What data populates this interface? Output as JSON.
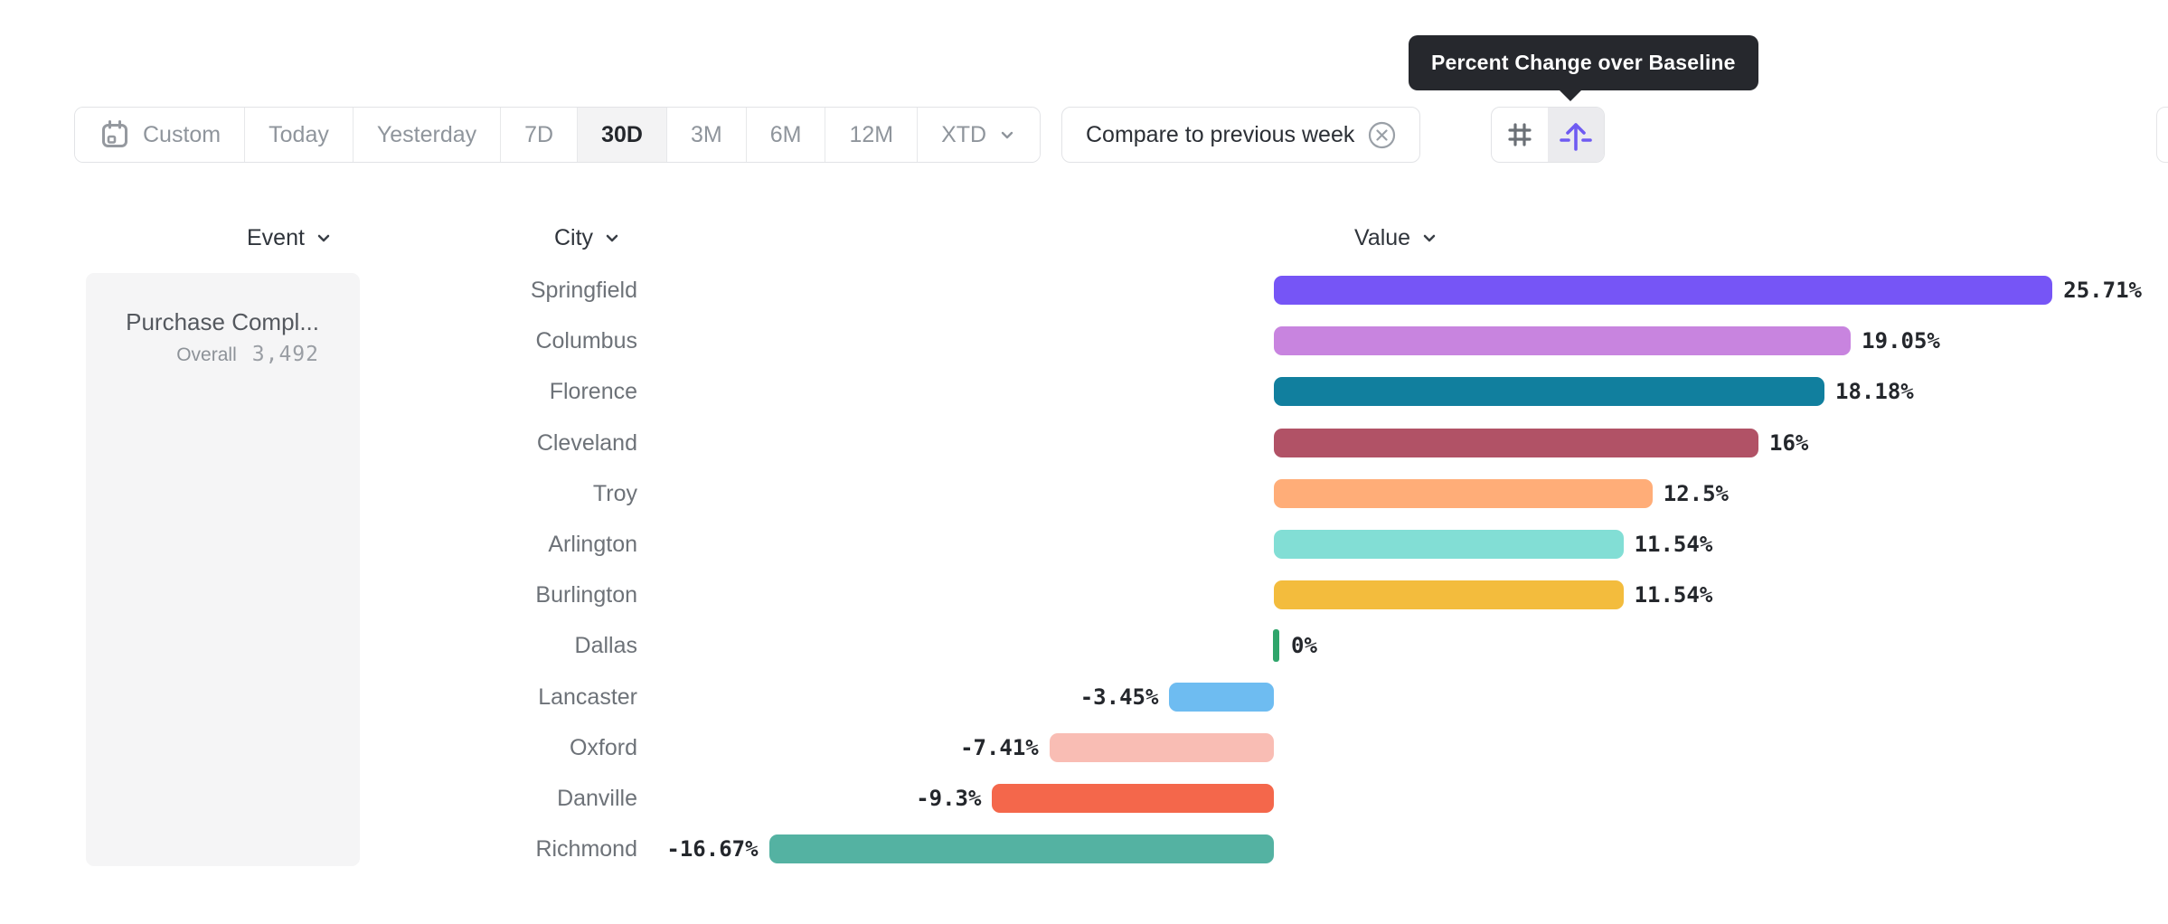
{
  "tooltip": {
    "text": "Percent Change over Baseline"
  },
  "toolbar": {
    "date_ranges": [
      {
        "label": "Custom",
        "selected": false
      },
      {
        "label": "Today",
        "selected": false
      },
      {
        "label": "Yesterday",
        "selected": false
      },
      {
        "label": "7D",
        "selected": false
      },
      {
        "label": "30D",
        "selected": true
      },
      {
        "label": "3M",
        "selected": false
      },
      {
        "label": "6M",
        "selected": false
      },
      {
        "label": "12M",
        "selected": false
      },
      {
        "label": "XTD",
        "selected": false
      }
    ],
    "compare_chip": {
      "label": "Compare to previous week"
    },
    "view_toggle": [
      {
        "name": "numeric-view",
        "icon": "hash-icon",
        "selected": false
      },
      {
        "name": "percent-change-view",
        "icon": "arrow-up-baseline-icon",
        "selected": true
      }
    ]
  },
  "columns": {
    "event": "Event",
    "city": "City",
    "value": "Value"
  },
  "event_panel": {
    "title": "Purchase Compl...",
    "overall_label": "Overall",
    "overall_value": "3,492"
  },
  "chart_data": {
    "type": "bar",
    "orientation": "horizontal",
    "title": "Percent Change over Baseline",
    "unit": "%",
    "baseline": 0,
    "grid": false,
    "xlim": [
      -18,
      27
    ],
    "categories": [
      "Springfield",
      "Columbus",
      "Florence",
      "Cleveland",
      "Troy",
      "Arlington",
      "Burlington",
      "Dallas",
      "Lancaster",
      "Oxford",
      "Danville",
      "Richmond"
    ],
    "values": [
      25.71,
      19.05,
      18.18,
      16,
      12.5,
      11.54,
      11.54,
      0,
      -3.45,
      -7.41,
      -9.3,
      -16.67
    ],
    "value_labels": [
      "25.71%",
      "19.05%",
      "18.18%",
      "16%",
      "12.5%",
      "11.54%",
      "11.54%",
      "0%",
      "-3.45%",
      "-7.41%",
      "-9.3%",
      "-16.67%"
    ],
    "bar_colors": [
      "#7655F6",
      "#C884DF",
      "#117F9E",
      "#B15266",
      "#FFAD78",
      "#82DED5",
      "#F3BC3D",
      "#2FA56B",
      "#6EBCF1",
      "#F9BDB4",
      "#F4674B",
      "#54B2A2"
    ]
  },
  "colors": {
    "accent_purple": "#6F5BF2",
    "tooltip_bg": "#26282D",
    "selected_segment_bg": "#F3F3F4",
    "panel_bg": "#F5F5F6",
    "border": "#E2E3E6",
    "zero_bar_green": "#2FA56B"
  }
}
